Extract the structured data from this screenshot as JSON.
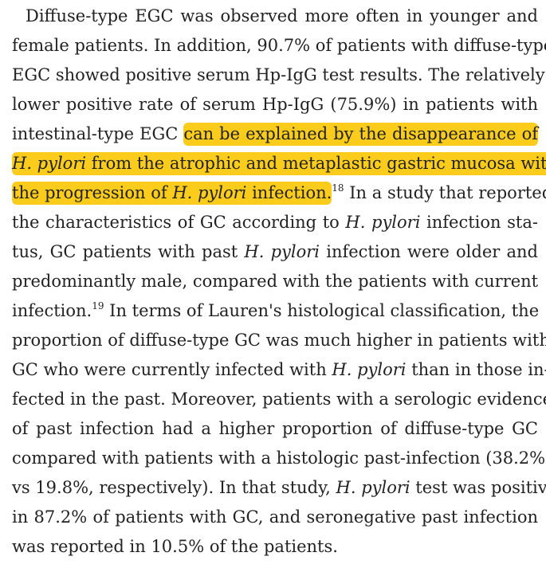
{
  "paragraph": {
    "l1": "Diffuse-type EGC was observed more often in younger and",
    "l2": "female patients. In addition, 90.7% of patients with diffuse-type",
    "l3": "EGC showed positive serum Hp-IgG test results. The relatively",
    "l4": "lower positive rate of serum Hp-IgG (75.9%) in patients with",
    "l5a": "intestinal-type EGC ",
    "l5b": "can be explained by the disappearance of",
    "l6a": "H. pylori",
    "l6b": " from the atrophic and metaplastic gastric mucosa with",
    "l7a": "the progression of ",
    "l7b": "H. pylori",
    "l7c": " infection.",
    "l7ref": "18",
    "l7d": " In a study that reported",
    "l8a": "the characteristics of GC according to ",
    "l8b": "H. pylori",
    "l8c": " infection sta-",
    "l9a": "tus, GC patients with past ",
    "l9b": "H. pylori",
    "l9c": " infection were older and",
    "l10": "predominantly male, compared with the patients with current",
    "l11a": "infection.",
    "l11ref": "19",
    "l11b": " In terms of Lauren's histological classification, the",
    "l12": "proportion of diffuse-type GC was much higher in patients with",
    "l13a": "GC who were currently infected with ",
    "l13b": "H. pylori",
    "l13c": " than in those in-",
    "l14": "fected in the past. Moreover, patients with a serologic evidence",
    "l15": "of past infection had a higher proportion of diffuse-type GC",
    "l16": "compared with patients with a histologic past-infection (38.2%",
    "l17a": "vs 19.8%, respectively). In that study, ",
    "l17b": "H. pylori",
    "l17c": " test was positive",
    "l18": "in 87.2% of patients with GC, and seronegative past infection",
    "l19": "was reported in 10.5% of the patients."
  },
  "highlight_color": "#fccc1c"
}
